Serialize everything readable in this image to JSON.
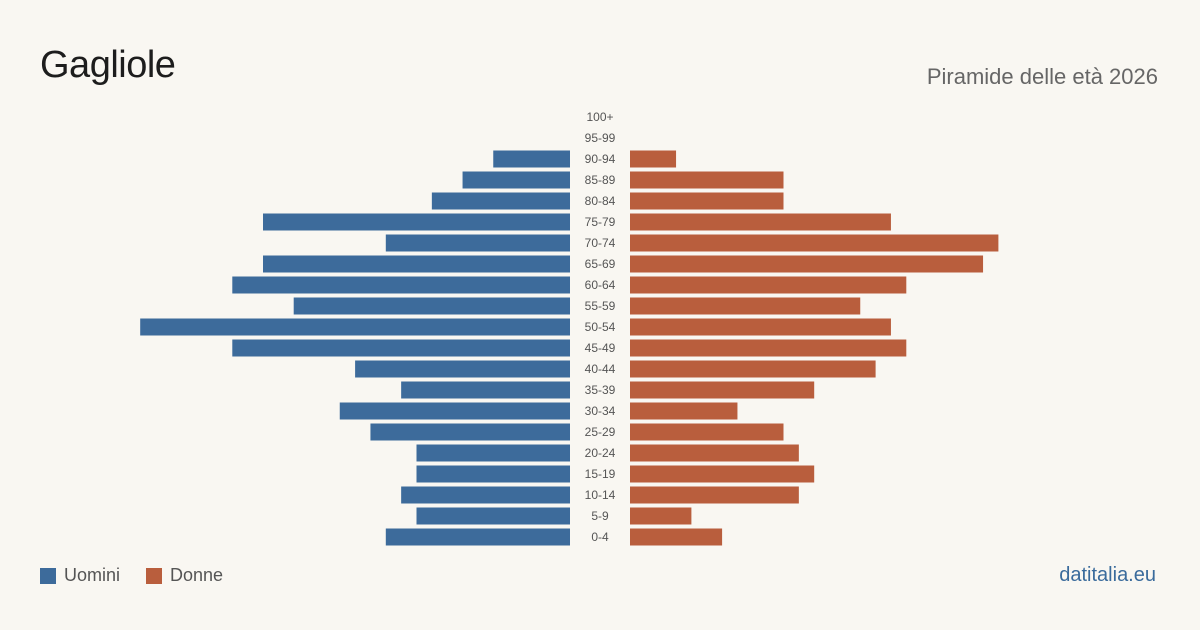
{
  "header": {
    "title": "Gagliole",
    "subtitle": "Piramide delle età 2026"
  },
  "legend": {
    "men_label": "Uomini",
    "women_label": "Donne"
  },
  "brand": "datitalia.eu",
  "colors": {
    "men": "#3d6b9b",
    "women": "#b95e3d",
    "background": "#f9f7f2",
    "label": "#555555"
  },
  "chart_data": {
    "type": "bar",
    "orientation": "horizontal-pyramid",
    "categories": [
      "100+",
      "95-99",
      "90-94",
      "85-89",
      "80-84",
      "75-79",
      "70-74",
      "65-69",
      "60-64",
      "55-59",
      "50-54",
      "45-49",
      "40-44",
      "35-39",
      "30-34",
      "25-29",
      "20-24",
      "15-19",
      "10-14",
      "5-9",
      "0-4"
    ],
    "series": [
      {
        "name": "Uomini",
        "values": [
          0,
          0,
          5,
          7,
          9,
          20,
          12,
          20,
          22,
          18,
          28,
          22,
          14,
          11,
          15,
          13,
          10,
          10,
          11,
          10,
          12
        ]
      },
      {
        "name": "Donne",
        "values": [
          0,
          0,
          3,
          10,
          10,
          17,
          24,
          23,
          18,
          15,
          17,
          18,
          16,
          12,
          7,
          10,
          11,
          12,
          11,
          4,
          6
        ]
      }
    ]
  }
}
